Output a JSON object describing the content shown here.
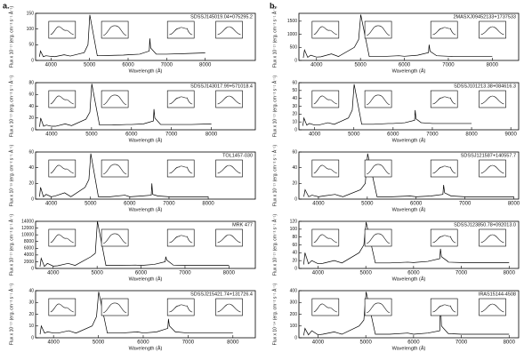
{
  "panel_labels": [
    "a.",
    "b."
  ],
  "chart_data": [
    {
      "type": "line",
      "title": "SDSSJ145019.04+075295.2",
      "x_label": "Wavelength (Å)",
      "y_label": "Flux x 10⁻¹⁷ (erg. cm⁻² s⁻¹ Å⁻¹)",
      "color": "#000000",
      "xlim": [
        3600,
        9300
      ],
      "xticks": [
        4000,
        5000,
        6000,
        7000,
        8000
      ],
      "ylim": [
        0,
        150
      ],
      "yticks": [
        0,
        50,
        100,
        150
      ],
      "x": [
        3700,
        3727,
        3800,
        3869,
        4000,
        4101,
        4340,
        4500,
        4861,
        4959,
        5007,
        5200,
        5500,
        5876,
        6000,
        6300,
        6548,
        6563,
        6584,
        6716,
        6731,
        7000,
        7500,
        8000
      ],
      "values": [
        12,
        30,
        12,
        15,
        13,
        12,
        18,
        14,
        25,
        50,
        145,
        15,
        16,
        17,
        18,
        20,
        30,
        70,
        40,
        22,
        20,
        20,
        22,
        24
      ]
    },
    {
      "type": "line",
      "title": "SDSSJ143017.99+571018.4",
      "x_label": "Wavelength (Å)",
      "y_label": "Flux x 10⁻¹⁷ (erg. cm⁻² s⁻¹ Å⁻¹)",
      "color": "#000000",
      "xlim": [
        3600,
        9100
      ],
      "xticks": [
        4000,
        5000,
        6000,
        7000,
        8000
      ],
      "ylim": [
        0,
        80
      ],
      "yticks": [
        0,
        20,
        40,
        60,
        80
      ],
      "x": [
        3700,
        3727,
        3800,
        3869,
        4000,
        4101,
        4340,
        4500,
        4861,
        4959,
        5007,
        5200,
        5500,
        5876,
        6000,
        6300,
        6548,
        6563,
        6584,
        6716,
        6731,
        7000,
        7500,
        8000
      ],
      "values": [
        5,
        20,
        6,
        8,
        6,
        6,
        10,
        7,
        18,
        30,
        78,
        8,
        8,
        9,
        9,
        10,
        15,
        35,
        20,
        10,
        9,
        9,
        9,
        10
      ]
    },
    {
      "type": "line",
      "title": "TOL1457-030",
      "x_label": "Wavelength (Å)",
      "y_label": "Flux x 10⁻¹⁵ (erg. cm⁻² s⁻¹ Å⁻¹)",
      "color": "#000000",
      "xlim": [
        3600,
        9200
      ],
      "xticks": [
        4000,
        5000,
        6000,
        7000,
        8000
      ],
      "ylim": [
        0,
        60
      ],
      "yticks": [
        0,
        20,
        40,
        60
      ],
      "x": [
        3700,
        3727,
        3800,
        3869,
        4000,
        4101,
        4340,
        4500,
        4861,
        4959,
        5007,
        5200,
        5500,
        5876,
        6000,
        6300,
        6548,
        6563,
        6584,
        6716,
        6731,
        7000,
        7500,
        8000
      ],
      "values": [
        3,
        15,
        3,
        6,
        3,
        4,
        8,
        3,
        15,
        25,
        58,
        3,
        3,
        5,
        3,
        4,
        5,
        20,
        6,
        4,
        4,
        3,
        3,
        3
      ]
    },
    {
      "type": "line",
      "title": "MRK 477",
      "x_label": "Wavelength (Å)",
      "y_label": "Flux x 10⁻¹⁷ (erg. cm⁻² s⁻¹ Å⁻¹)",
      "color": "#000000",
      "xlim": [
        3600,
        8600
      ],
      "xticks": [
        4000,
        5000,
        6000,
        7000,
        8000
      ],
      "ylim": [
        0,
        14000
      ],
      "yticks": [
        0,
        2000,
        4000,
        6000,
        8000,
        10000,
        12000,
        14000
      ],
      "x": [
        3700,
        3727,
        3800,
        3869,
        4000,
        4101,
        4340,
        4500,
        4861,
        4959,
        5007,
        5200,
        5500,
        5876,
        6000,
        6300,
        6548,
        6563,
        6584,
        6716,
        6731,
        7000,
        7500,
        8000
      ],
      "values": [
        500,
        3000,
        600,
        1500,
        700,
        800,
        1500,
        900,
        3500,
        4500,
        14000,
        900,
        900,
        1000,
        900,
        1200,
        2000,
        3500,
        2500,
        1200,
        1000,
        900,
        900,
        900
      ]
    },
    {
      "type": "line",
      "title": "SDSSJ215421.74+131726.4",
      "x_label": "Wavelength (Å)",
      "y_label": "Flux x 10⁻¹⁷ (erg. cm⁻² s⁻¹ Å⁻¹)",
      "color": "#000000",
      "xlim": [
        3600,
        8500
      ],
      "xticks": [
        4000,
        5000,
        6000,
        7000,
        8000
      ],
      "ylim": [
        0,
        40
      ],
      "yticks": [
        0,
        10,
        20,
        30,
        40
      ],
      "x": [
        3700,
        3727,
        3800,
        3869,
        4000,
        4101,
        4340,
        4500,
        4861,
        4959,
        5007,
        5200,
        5500,
        5876,
        6000,
        6300,
        6548,
        6563,
        6584,
        6716,
        6731,
        7000,
        7500,
        8000
      ],
      "values": [
        3,
        10,
        4,
        5,
        4,
        4,
        6,
        4,
        10,
        18,
        39,
        4,
        4,
        5,
        4,
        5,
        8,
        16,
        10,
        5,
        5,
        4,
        4,
        4
      ]
    },
    {
      "type": "line",
      "title": "2MASXJ09452133+1737533",
      "x_label": "Wavelength (Å)",
      "y_label": "Flux x 10⁻¹⁷ (erg. cm⁻² s⁻¹ Å⁻¹)",
      "color": "#000000",
      "xlim": [
        3600,
        8600
      ],
      "xticks": [
        4000,
        5000,
        6000,
        7000,
        8000
      ],
      "ylim": [
        0,
        1800
      ],
      "yticks": [
        0,
        500,
        1000,
        1500
      ],
      "x": [
        3700,
        3727,
        3800,
        3869,
        4000,
        4101,
        4340,
        4500,
        4861,
        4959,
        5007,
        5200,
        5500,
        5876,
        6000,
        6300,
        6548,
        6563,
        6584,
        6716,
        6731,
        7000,
        7500,
        8000
      ],
      "values": [
        100,
        400,
        120,
        200,
        130,
        140,
        250,
        150,
        500,
        800,
        1750,
        150,
        150,
        180,
        160,
        200,
        300,
        600,
        350,
        200,
        180,
        160,
        150,
        150
      ]
    },
    {
      "type": "line",
      "title": "SDSSJ101213.38+084616.3",
      "x_label": "Wavelength (Å)",
      "y_label": "Flux x 10⁻¹⁷ (erg. cm⁻² s⁻¹ Å⁻¹)",
      "color": "#000000",
      "xlim": [
        3600,
        9200
      ],
      "xticks": [
        4000,
        5000,
        6000,
        7000,
        8000,
        9000
      ],
      "ylim": [
        0,
        60
      ],
      "yticks": [
        0,
        10,
        20,
        30,
        40,
        50,
        60
      ],
      "x": [
        3700,
        3727,
        3800,
        3869,
        4000,
        4101,
        4340,
        4500,
        4861,
        4959,
        5007,
        5200,
        5500,
        5876,
        6000,
        6300,
        6548,
        6563,
        6584,
        6716,
        6731,
        7000,
        7500,
        8000
      ],
      "values": [
        5,
        15,
        6,
        8,
        6,
        6,
        9,
        7,
        15,
        25,
        58,
        7,
        7,
        8,
        8,
        9,
        12,
        25,
        14,
        9,
        9,
        8,
        8,
        8
      ]
    },
    {
      "type": "line",
      "title": "SDSSJ121587+140557.7",
      "x_label": "Wavelength (Å)",
      "y_label": "Flux x 10⁻¹⁷ (erg. cm⁻² s⁻¹ Å⁻¹)",
      "color": "#000000",
      "xlim": [
        3600,
        8100
      ],
      "xticks": [
        4000,
        5000,
        6000,
        7000,
        8000
      ],
      "ylim": [
        0,
        60
      ],
      "yticks": [
        0,
        20,
        40,
        60
      ],
      "x": [
        3700,
        3727,
        3800,
        3869,
        4000,
        4101,
        4340,
        4500,
        4861,
        4959,
        5007,
        5200,
        5500,
        5876,
        6000,
        6300,
        6548,
        6563,
        6584,
        6716,
        6731,
        7000,
        7500,
        8000
      ],
      "values": [
        3,
        12,
        3,
        5,
        3,
        4,
        6,
        3,
        12,
        20,
        58,
        3,
        3,
        4,
        3,
        4,
        6,
        18,
        8,
        4,
        4,
        3,
        3,
        3
      ]
    },
    {
      "type": "line",
      "title": "SDSSJ123850.78+092013.0",
      "x_label": "Wavelength (Å)",
      "y_label": "Flux x 10⁻¹⁷ (erg. cm⁻² s⁻¹ Å⁻¹)",
      "color": "#000000",
      "xlim": [
        3600,
        8200
      ],
      "xticks": [
        4000,
        5000,
        6000,
        7000,
        8000
      ],
      "ylim": [
        0,
        120
      ],
      "yticks": [
        0,
        20,
        40,
        60,
        80,
        100,
        120
      ],
      "x": [
        3700,
        3727,
        3800,
        3869,
        4000,
        4101,
        4340,
        4500,
        4861,
        4959,
        5007,
        5200,
        5500,
        5876,
        6000,
        6300,
        6548,
        6563,
        6584,
        6716,
        6731,
        7000,
        7500,
        8000
      ],
      "values": [
        10,
        40,
        12,
        20,
        12,
        13,
        20,
        14,
        40,
        60,
        118,
        14,
        14,
        16,
        15,
        18,
        25,
        50,
        30,
        18,
        16,
        15,
        15,
        15
      ]
    },
    {
      "type": "line",
      "title": "IRAS15144-4508",
      "x_label": "Wavelength (Å)",
      "y_label": "Flux x 10⁻¹⁴ (erg. cm⁻² s⁻¹ Å⁻¹)",
      "color": "#000000",
      "xlim": [
        3600,
        8200
      ],
      "xticks": [
        4000,
        5000,
        6000,
        7000,
        8000
      ],
      "ylim": [
        0,
        400
      ],
      "yticks": [
        0,
        100,
        200,
        300,
        400
      ],
      "x": [
        3700,
        3727,
        3800,
        3869,
        4000,
        4101,
        4340,
        4500,
        4861,
        4959,
        5007,
        5200,
        5500,
        5876,
        6000,
        6300,
        6548,
        6563,
        6584,
        6716,
        6731,
        7000,
        7500,
        8000
      ],
      "values": [
        20,
        80,
        25,
        60,
        25,
        30,
        50,
        30,
        100,
        150,
        390,
        30,
        30,
        40,
        30,
        40,
        60,
        300,
        100,
        40,
        35,
        30,
        30,
        30
      ]
    }
  ]
}
